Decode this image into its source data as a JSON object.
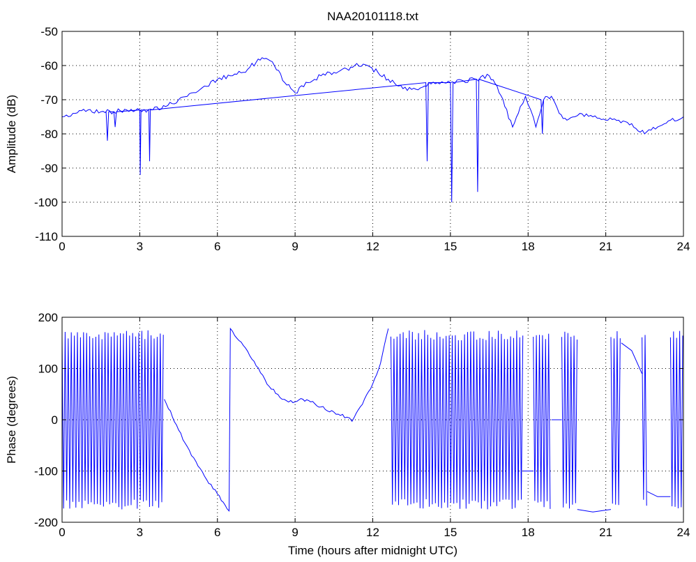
{
  "chart_data": [
    {
      "type": "line",
      "title": "NAA20101118.txt",
      "xlabel": "",
      "ylabel": "Amplitude (dB)",
      "xlim": [
        0,
        24
      ],
      "ylim": [
        -110,
        -50
      ],
      "xticks": [
        0,
        3,
        6,
        9,
        12,
        15,
        18,
        21,
        24
      ],
      "yticks": [
        -110,
        -100,
        -90,
        -80,
        -70,
        -60,
        -50
      ],
      "grid": true,
      "color": "#0000ff",
      "series": [
        {
          "x": [
            0,
            0.5,
            1,
            1.5,
            2,
            2.5,
            3,
            3.5,
            4,
            4.5,
            5,
            5.5,
            6,
            6.5,
            7,
            7.5,
            7.8,
            8.2,
            8.6,
            9,
            9.5,
            10,
            10.5,
            11,
            11.3,
            11.8,
            12.2,
            12.6,
            13,
            13.5,
            14,
            14.5,
            15,
            15.5,
            16,
            16.5,
            16.8,
            17.1,
            17.4,
            17.7,
            17.9,
            18.1,
            18.3,
            18.6,
            18.9,
            19.2,
            19.5,
            19.8,
            20,
            20.5,
            21,
            21.5,
            22,
            22.5,
            23,
            23.5,
            24
          ],
          "y": [
            -75,
            -74,
            -73,
            -73.5,
            -73.5,
            -73,
            -73,
            -73,
            -72,
            -70,
            -68,
            -66,
            -64,
            -63,
            -62,
            -59,
            -58,
            -60,
            -65,
            -68,
            -65,
            -63,
            -62,
            -61,
            -60,
            -60,
            -62,
            -64,
            -66,
            -67,
            -66,
            -65,
            -65,
            -64.5,
            -64,
            -63,
            -66,
            -72,
            -78,
            -72,
            -69,
            -73,
            -78,
            -70,
            -69,
            -74,
            -76,
            -75,
            -74,
            -75,
            -76,
            -76,
            -77,
            -80,
            -78,
            -76,
            -75
          ]
        },
        {
          "x": [
            1.7,
            1.75,
            1.8,
            2.0,
            2.05,
            2.1,
            3.0,
            3.02,
            3.05,
            3.35,
            3.38,
            3.41,
            14.05,
            14.1,
            14.15,
            15.0,
            15.05,
            15.1,
            16.0,
            16.05,
            16.1,
            18.5,
            18.55,
            18.6
          ],
          "y": [
            -73.5,
            -82,
            -73.5,
            -73.5,
            -78,
            -73.5,
            -73,
            -92,
            -73,
            -73,
            -88,
            -73,
            -65,
            -88,
            -65,
            -65,
            -100,
            -65,
            -64,
            -97,
            -64,
            -70,
            -80,
            -70
          ]
        }
      ]
    },
    {
      "type": "line",
      "title": "",
      "xlabel": "Time (hours after midnight UTC)",
      "ylabel": "Phase (degrees)",
      "xlim": [
        0,
        24
      ],
      "ylim": [
        -200,
        200
      ],
      "xticks": [
        0,
        3,
        6,
        9,
        12,
        15,
        18,
        21,
        24
      ],
      "yticks": [
        -200,
        -100,
        0,
        100,
        200
      ],
      "grid": true,
      "color": "#0000ff",
      "wrapped_segments": [
        {
          "x_start": 0,
          "x_end": 3.95,
          "y_min": -175,
          "y_max": 175
        },
        {
          "x_start": 12.7,
          "x_end": 17.8,
          "y_min": -175,
          "y_max": 175
        },
        {
          "x_start": 18.2,
          "x_end": 18.9,
          "y_min": -175,
          "y_max": 175
        },
        {
          "x_start": 19.3,
          "x_end": 19.9,
          "y_min": -175,
          "y_max": 175
        },
        {
          "x_start": 21.2,
          "x_end": 21.6,
          "y_min": -175,
          "y_max": 175
        },
        {
          "x_start": 22.4,
          "x_end": 22.6,
          "y_min": -175,
          "y_max": 175
        },
        {
          "x_start": 23.5,
          "x_end": 24,
          "y_min": -175,
          "y_max": 175
        }
      ],
      "series": [
        {
          "x": [
            3.95,
            4.5,
            5,
            5.5,
            6,
            6.45,
            6.5,
            7,
            7.5,
            8,
            8.5,
            9,
            9.3,
            9.6,
            10,
            10.5,
            11,
            11.2,
            11.6,
            12,
            12.3,
            12.6
          ],
          "y": [
            40,
            -20,
            -70,
            -110,
            -145,
            -178,
            178,
            145,
            105,
            65,
            40,
            35,
            40,
            35,
            25,
            15,
            5,
            -3,
            30,
            70,
            110,
            178
          ]
        },
        {
          "x": [
            17.8,
            18.2
          ],
          "y": [
            -100,
            -100
          ]
        },
        {
          "x": [
            18.9,
            19.3
          ],
          "y": [
            0,
            0
          ]
        },
        {
          "x": [
            19.9,
            20.5,
            21.2
          ],
          "y": [
            -175,
            -180,
            -175
          ]
        },
        {
          "x": [
            21.6,
            22.0,
            22.4
          ],
          "y": [
            150,
            135,
            90
          ]
        },
        {
          "x": [
            22.6,
            23.0,
            23.5
          ],
          "y": [
            -140,
            -150,
            -150
          ]
        }
      ]
    }
  ]
}
